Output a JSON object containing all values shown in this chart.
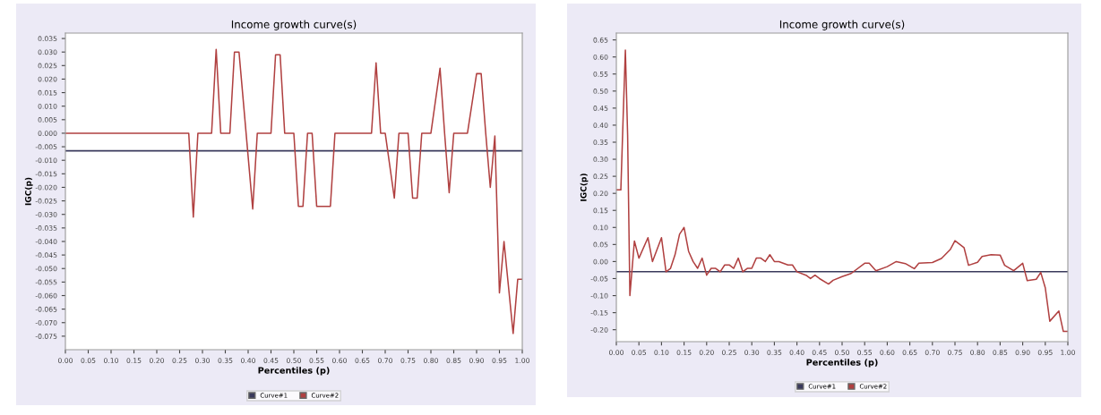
{
  "chart_data": [
    {
      "type": "line",
      "title": "Income growth curve(s)",
      "xlabel": "Percentiles (p)",
      "ylabel": "IGC(p)",
      "legend": "bottom",
      "grid": false,
      "marker": "none",
      "line_style": "solid",
      "xlim": [
        0,
        1
      ],
      "xticks": [
        {
          "value": 0,
          "label": "0.00"
        },
        {
          "value": 0.05,
          "label": "0.05"
        },
        {
          "value": 0.1,
          "label": "0.10"
        },
        {
          "value": 0.15,
          "label": "0.15"
        },
        {
          "value": 0.2,
          "label": "0.20"
        },
        {
          "value": 0.25,
          "label": "0.25"
        },
        {
          "value": 0.3,
          "label": "0.30"
        },
        {
          "value": 0.35,
          "label": "0.35"
        },
        {
          "value": 0.4,
          "label": "0.40"
        },
        {
          "value": 0.45,
          "label": "0.45"
        },
        {
          "value": 0.5,
          "label": "0.50"
        },
        {
          "value": 0.55,
          "label": "0.55"
        },
        {
          "value": 0.6,
          "label": "0.60"
        },
        {
          "value": 0.65,
          "label": "0.65"
        },
        {
          "value": 0.7,
          "label": "0.70"
        },
        {
          "value": 0.75,
          "label": "0.75"
        },
        {
          "value": 0.8,
          "label": "0.80"
        },
        {
          "value": 0.85,
          "label": "0.85"
        },
        {
          "value": 0.9,
          "label": "0.90"
        },
        {
          "value": 0.95,
          "label": "0.95"
        },
        {
          "value": 1,
          "label": "1.00"
        }
      ],
      "ylim": [
        -0.08,
        0.037
      ],
      "yticks": [
        {
          "value": 0.035,
          "label": "0.035"
        },
        {
          "value": 0.03,
          "label": "0.030"
        },
        {
          "value": 0.025,
          "label": "0.025"
        },
        {
          "value": 0.02,
          "label": "0.020"
        },
        {
          "value": 0.015,
          "label": "0.015"
        },
        {
          "value": 0.01,
          "label": "0.010"
        },
        {
          "value": 0.005,
          "label": "0.005"
        },
        {
          "value": 0,
          "label": "0.000"
        },
        {
          "value": -0.005,
          "label": "-0.005"
        },
        {
          "value": -0.01,
          "label": "-0.010"
        },
        {
          "value": -0.015,
          "label": "-0.015"
        },
        {
          "value": -0.02,
          "label": "-0.020"
        },
        {
          "value": -0.025,
          "label": "-0.025"
        },
        {
          "value": -0.03,
          "label": "-0.030"
        },
        {
          "value": -0.035,
          "label": "-0.035"
        },
        {
          "value": -0.04,
          "label": "-0.040"
        },
        {
          "value": -0.045,
          "label": "-0.045"
        },
        {
          "value": -0.05,
          "label": "-0.050"
        },
        {
          "value": -0.055,
          "label": "-0.055"
        },
        {
          "value": -0.06,
          "label": "-0.060"
        },
        {
          "value": -0.065,
          "label": "-0.065"
        },
        {
          "value": -0.07,
          "label": "-0.070"
        },
        {
          "value": -0.075,
          "label": "-0.075"
        }
      ],
      "series": [
        {
          "name": "Curve#1",
          "color": "#3a3a5c",
          "x": [
            0,
            1
          ],
          "values": [
            -0.0065,
            -0.0065
          ]
        },
        {
          "name": "Curve#2",
          "color": "#b04040",
          "x": [
            0,
            0.27,
            0.28,
            0.29,
            0.32,
            0.33,
            0.34,
            0.36,
            0.37,
            0.38,
            0.41,
            0.42,
            0.45,
            0.46,
            0.47,
            0.48,
            0.5,
            0.51,
            0.52,
            0.53,
            0.54,
            0.55,
            0.58,
            0.59,
            0.67,
            0.68,
            0.69,
            0.7,
            0.72,
            0.73,
            0.75,
            0.76,
            0.77,
            0.78,
            0.8,
            0.82,
            0.83,
            0.84,
            0.85,
            0.88,
            0.9,
            0.91,
            0.92,
            0.93,
            0.94,
            0.95,
            0.96,
            0.98,
            0.99,
            1
          ],
          "values": [
            0,
            0,
            -0.031,
            0,
            0,
            0.031,
            0,
            0,
            0.03,
            0.03,
            -0.028,
            0,
            0,
            0.029,
            0.029,
            0,
            0,
            -0.027,
            -0.027,
            0,
            0,
            -0.027,
            -0.027,
            0,
            0,
            0.026,
            0,
            0,
            -0.024,
            0,
            0,
            -0.024,
            -0.024,
            0,
            0,
            0.024,
            0,
            -0.022,
            0,
            0,
            0.022,
            0.022,
            0,
            -0.02,
            -0.001,
            -0.059,
            -0.04,
            -0.074,
            -0.054,
            -0.054
          ]
        }
      ]
    },
    {
      "type": "line",
      "title": "Income growth curve(s)",
      "xlabel": "Percentiles (p)",
      "ylabel": "IGC(p)",
      "legend": "bottom",
      "grid": false,
      "marker": "none",
      "line_style": "solid",
      "xlim": [
        0,
        1
      ],
      "xticks": [
        {
          "value": 0,
          "label": "0.00"
        },
        {
          "value": 0.05,
          "label": "0.05"
        },
        {
          "value": 0.1,
          "label": "0.10"
        },
        {
          "value": 0.15,
          "label": "0.15"
        },
        {
          "value": 0.2,
          "label": "0.20"
        },
        {
          "value": 0.25,
          "label": "0.25"
        },
        {
          "value": 0.3,
          "label": "0.30"
        },
        {
          "value": 0.35,
          "label": "0.35"
        },
        {
          "value": 0.4,
          "label": "0.40"
        },
        {
          "value": 0.45,
          "label": "0.45"
        },
        {
          "value": 0.5,
          "label": "0.50"
        },
        {
          "value": 0.55,
          "label": "0.55"
        },
        {
          "value": 0.6,
          "label": "0.60"
        },
        {
          "value": 0.65,
          "label": "0.65"
        },
        {
          "value": 0.7,
          "label": "0.70"
        },
        {
          "value": 0.75,
          "label": "0.75"
        },
        {
          "value": 0.8,
          "label": "0.80"
        },
        {
          "value": 0.85,
          "label": "0.85"
        },
        {
          "value": 0.9,
          "label": "0.90"
        },
        {
          "value": 0.95,
          "label": "0.95"
        },
        {
          "value": 1,
          "label": "1.00"
        }
      ],
      "ylim": [
        -0.235,
        0.67
      ],
      "yticks": [
        {
          "value": 0.65,
          "label": "0.65"
        },
        {
          "value": 0.6,
          "label": "0.60"
        },
        {
          "value": 0.55,
          "label": "0.55"
        },
        {
          "value": 0.5,
          "label": "0.50"
        },
        {
          "value": 0.45,
          "label": "0.45"
        },
        {
          "value": 0.4,
          "label": "0.40"
        },
        {
          "value": 0.35,
          "label": "0.35"
        },
        {
          "value": 0.3,
          "label": "0.30"
        },
        {
          "value": 0.25,
          "label": "0.25"
        },
        {
          "value": 0.2,
          "label": "0.20"
        },
        {
          "value": 0.15,
          "label": "0.15"
        },
        {
          "value": 0.1,
          "label": "0.10"
        },
        {
          "value": 0.05,
          "label": "0.05"
        },
        {
          "value": 0,
          "label": "0.00"
        },
        {
          "value": -0.05,
          "label": "-0.05"
        },
        {
          "value": -0.1,
          "label": "-0.10"
        },
        {
          "value": -0.15,
          "label": "-0.15"
        },
        {
          "value": -0.2,
          "label": "-0.20"
        }
      ],
      "series": [
        {
          "name": "Curve#1",
          "color": "#3a3a5c",
          "x": [
            0,
            1
          ],
          "values": [
            -0.03,
            -0.03
          ]
        },
        {
          "name": "Curve#2",
          "color": "#b04040",
          "x": [
            0,
            0.01,
            0.015,
            0.02,
            0.025,
            0.03,
            0.04,
            0.05,
            0.07,
            0.08,
            0.1,
            0.11,
            0.12,
            0.13,
            0.14,
            0.15,
            0.16,
            0.17,
            0.18,
            0.19,
            0.2,
            0.21,
            0.22,
            0.23,
            0.24,
            0.25,
            0.26,
            0.27,
            0.28,
            0.29,
            0.3,
            0.31,
            0.32,
            0.33,
            0.34,
            0.35,
            0.36,
            0.38,
            0.39,
            0.4,
            0.42,
            0.43,
            0.44,
            0.45,
            0.47,
            0.48,
            0.5,
            0.52,
            0.55,
            0.56,
            0.575,
            0.6,
            0.62,
            0.64,
            0.66,
            0.67,
            0.7,
            0.72,
            0.74,
            0.75,
            0.77,
            0.78,
            0.8,
            0.81,
            0.83,
            0.85,
            0.86,
            0.88,
            0.9,
            0.91,
            0.93,
            0.94,
            0.95,
            0.96,
            0.98,
            0.99,
            1
          ],
          "values": [
            0.21,
            0.21,
            0.42,
            0.62,
            0.37,
            -0.1,
            0.06,
            0.01,
            0.07,
            0.0,
            0.07,
            -0.03,
            -0.02,
            0.02,
            0.08,
            0.1,
            0.03,
            0.0,
            -0.02,
            0.01,
            -0.04,
            -0.02,
            -0.02,
            -0.03,
            -0.01,
            -0.01,
            -0.02,
            0.01,
            -0.03,
            -0.02,
            -0.02,
            0.01,
            0.01,
            0.0,
            0.02,
            0.0,
            0.0,
            -0.01,
            -0.01,
            -0.03,
            -0.04,
            -0.05,
            -0.04,
            -0.05,
            -0.066,
            -0.055,
            -0.044,
            -0.035,
            -0.005,
            -0.005,
            -0.027,
            -0.015,
            0.0,
            -0.006,
            -0.021,
            -0.005,
            -0.003,
            0.009,
            0.036,
            0.061,
            0.041,
            -0.011,
            -0.002,
            0.015,
            0.02,
            0.019,
            -0.011,
            -0.027,
            -0.005,
            -0.056,
            -0.052,
            -0.032,
            -0.077,
            -0.175,
            -0.145,
            -0.205,
            -0.205
          ]
        }
      ]
    }
  ]
}
